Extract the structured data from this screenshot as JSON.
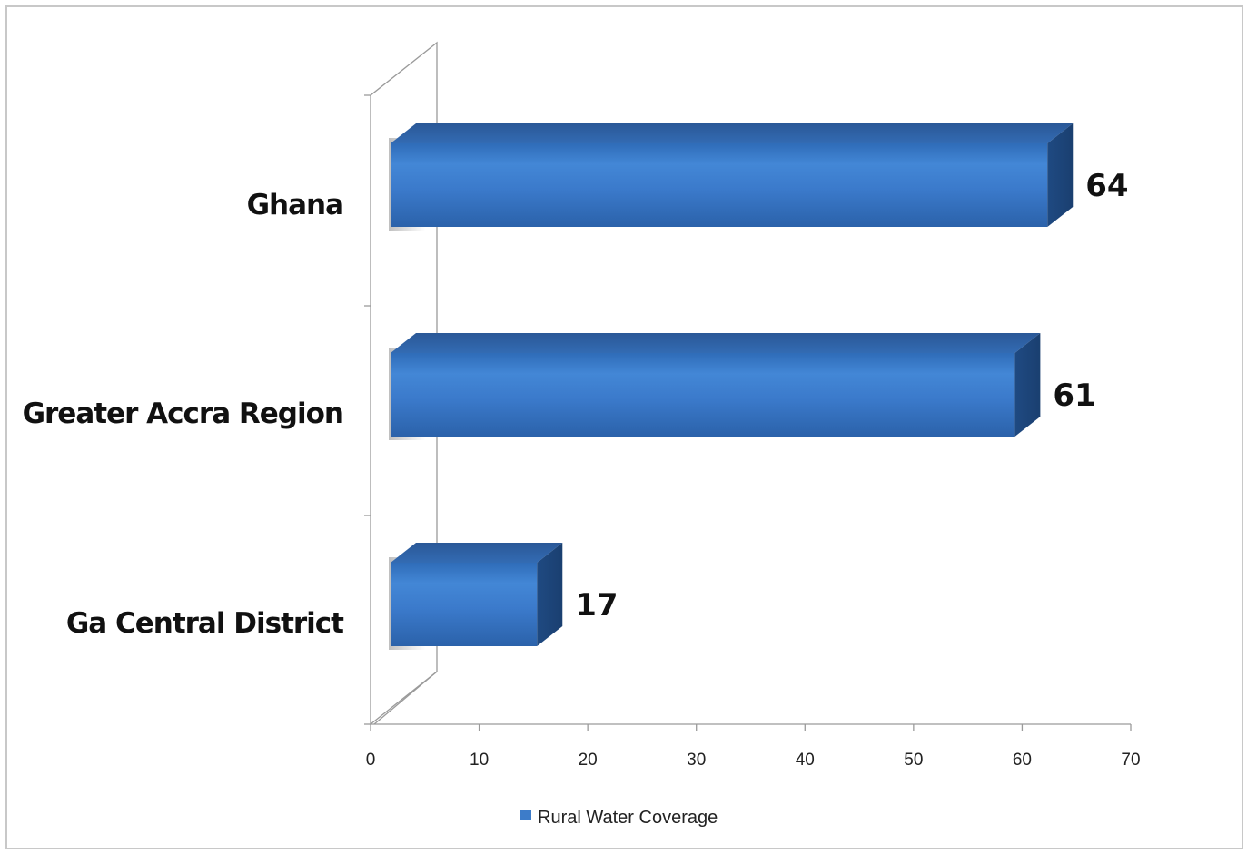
{
  "chart_data": {
    "type": "bar",
    "orientation": "horizontal",
    "style": "3d",
    "categories": [
      "Ghana",
      "Greater Accra Region",
      "Ga Central District"
    ],
    "series": [
      {
        "name": "Rural Water Coverage",
        "values": [
          64,
          61,
          17
        ],
        "color": "#3d7cc9"
      }
    ],
    "xlim": [
      0,
      70
    ],
    "xticks": [
      0,
      10,
      20,
      30,
      40,
      50,
      60,
      70
    ],
    "data_labels": [
      "64",
      "61",
      "17"
    ],
    "legend": {
      "position": "bottom",
      "label": "Rural Water Coverage"
    },
    "grid": false
  }
}
